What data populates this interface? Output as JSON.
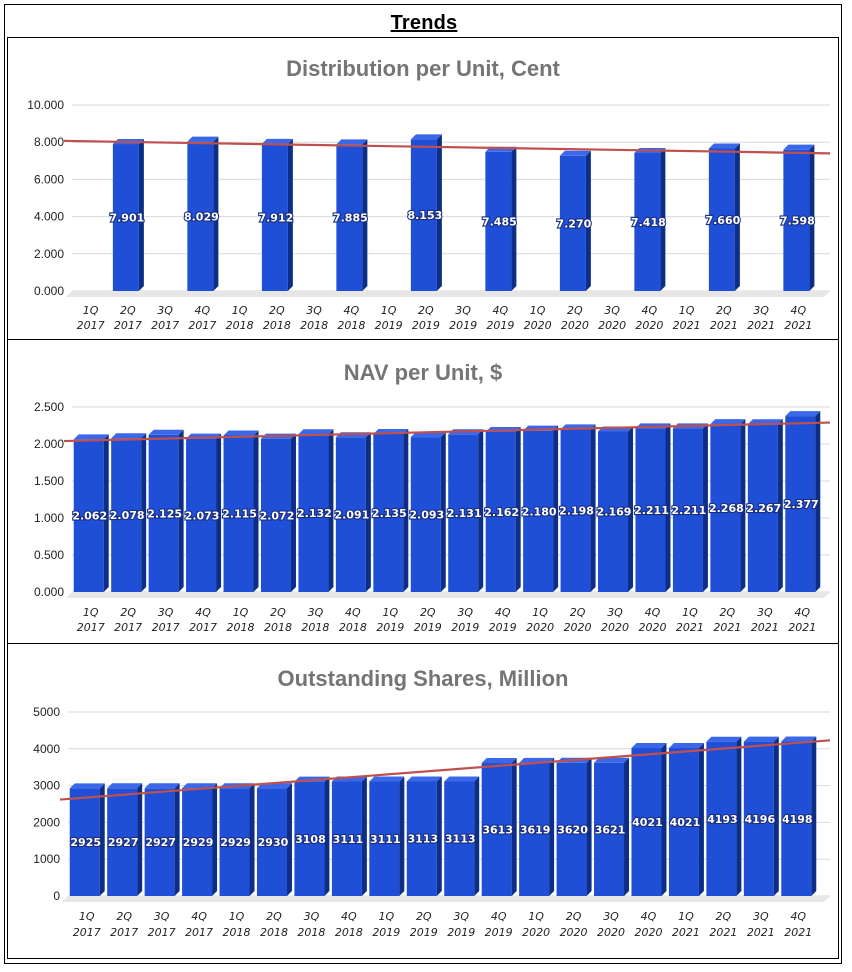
{
  "page": {
    "title": "Trends"
  },
  "colors": {
    "bar_front": "#1f4fd6",
    "bar_side": "#0d2e86",
    "bar_top": "#3a68e8",
    "trendline": "#c0504d",
    "gridline": "#d9d9d9",
    "floor": "#e6e6e6"
  },
  "chart_data": [
    {
      "type": "bar",
      "title": "Distribution per Unit, Cent",
      "categories": [
        "1Q 2017",
        "2Q 2017",
        "3Q 2017",
        "4Q 2017",
        "1Q 2018",
        "2Q 2018",
        "3Q 2018",
        "4Q 2018",
        "1Q 2019",
        "2Q 2019",
        "3Q 2019",
        "4Q 2019",
        "1Q 2020",
        "2Q 2020",
        "3Q 2020",
        "4Q 2020",
        "1Q 2021",
        "2Q 2021",
        "3Q 2021",
        "4Q 2021"
      ],
      "values": [
        null,
        7.901,
        null,
        8.029,
        null,
        7.912,
        null,
        7.885,
        null,
        8.153,
        null,
        7.485,
        null,
        7.27,
        null,
        7.418,
        null,
        7.66,
        null,
        7.598
      ],
      "value_labels": [
        "",
        "7.901",
        "",
        "8.029",
        "",
        "7.912",
        "",
        "7.885",
        "",
        "8.153",
        "",
        "7.485",
        "",
        "7.270",
        "",
        "7.418",
        "",
        "7.660",
        "",
        "7.598"
      ],
      "yticks": [
        "0.000",
        "2.000",
        "4.000",
        "6.000",
        "8.000",
        "10.000"
      ],
      "ylim": [
        0,
        10
      ],
      "trendline": [
        8.07,
        7.4
      ],
      "xlabel": "",
      "ylabel": ""
    },
    {
      "type": "bar",
      "title": "NAV per Unit, $",
      "categories": [
        "1Q 2017",
        "2Q 2017",
        "3Q 2017",
        "4Q 2017",
        "1Q 2018",
        "2Q 2018",
        "3Q 2018",
        "4Q 2018",
        "1Q 2019",
        "2Q 2019",
        "3Q 2019",
        "4Q 2019",
        "1Q 2020",
        "2Q 2020",
        "3Q 2020",
        "4Q 2020",
        "1Q 2021",
        "2Q 2021",
        "3Q 2021",
        "4Q 2021"
      ],
      "values": [
        2.062,
        2.078,
        2.125,
        2.073,
        2.115,
        2.072,
        2.132,
        2.091,
        2.135,
        2.093,
        2.131,
        2.162,
        2.18,
        2.198,
        2.169,
        2.211,
        2.211,
        2.268,
        2.267,
        2.377
      ],
      "value_labels": [
        "2.062",
        "2.078",
        "2.125",
        "2.073",
        "2.115",
        "2.072",
        "2.132",
        "2.091",
        "2.135",
        "2.093",
        "2.131",
        "2.162",
        "2.180",
        "2.198",
        "2.169",
        "2.211",
        "2.211",
        "2.268",
        "2.267",
        "2.377"
      ],
      "yticks": [
        "0.000",
        "0.500",
        "1.000",
        "1.500",
        "2.000",
        "2.500"
      ],
      "ylim": [
        0,
        2.5
      ],
      "trendline": [
        2.04,
        2.29
      ],
      "xlabel": "",
      "ylabel": ""
    },
    {
      "type": "bar",
      "title": "Outstanding Shares, Million",
      "categories": [
        "1Q 2017",
        "2Q 2017",
        "3Q 2017",
        "4Q 2017",
        "1Q 2018",
        "2Q 2018",
        "3Q 2018",
        "4Q 2018",
        "1Q 2019",
        "2Q 2019",
        "3Q 2019",
        "4Q 2019",
        "1Q 2020",
        "2Q 2020",
        "3Q 2020",
        "4Q 2020",
        "1Q 2021",
        "2Q 2021",
        "3Q 2021",
        "4Q 2021"
      ],
      "values": [
        2925,
        2927,
        2927,
        2929,
        2929,
        2930,
        3108,
        3111,
        3111,
        3113,
        3113,
        3613,
        3619,
        3620,
        3621,
        4021,
        4021,
        4193,
        4196,
        4198
      ],
      "value_labels": [
        "2925",
        "2927",
        "2927",
        "2929",
        "2929",
        "2930",
        "3108",
        "3111",
        "3111",
        "3113",
        "3113",
        "3613",
        "3619",
        "3620",
        "3621",
        "4021",
        "4021",
        "4193",
        "4196",
        "4198"
      ],
      "yticks": [
        "0",
        "1000",
        "2000",
        "3000",
        "4000",
        "5000"
      ],
      "ylim": [
        0,
        5000
      ],
      "trendline": [
        2620,
        4230
      ],
      "xlabel": "",
      "ylabel": ""
    }
  ]
}
